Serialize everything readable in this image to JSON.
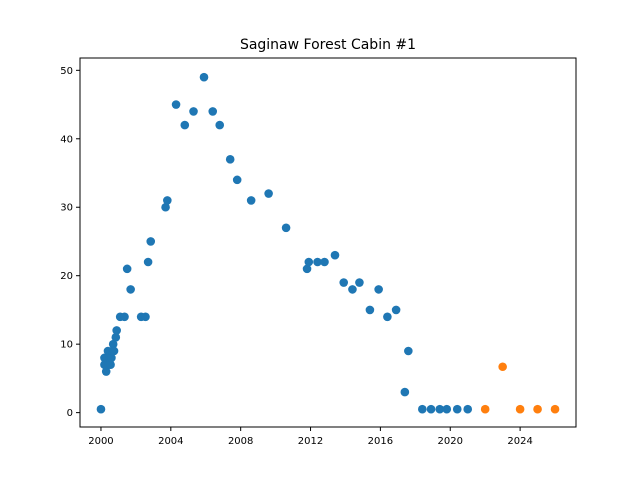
{
  "chart_data": {
    "type": "scatter",
    "title": "Saginaw Forest Cabin #1",
    "xlabel": "",
    "ylabel": "",
    "xlim": [
      1998.8,
      2027.2
    ],
    "ylim": [
      -2.1,
      51.8
    ],
    "xticks": [
      "2000",
      "2004",
      "2008",
      "2012",
      "2016",
      "2020",
      "2024"
    ],
    "yticks": [
      "0",
      "10",
      "20",
      "30",
      "40",
      "50"
    ],
    "grid": false,
    "legend": "none",
    "series": [
      {
        "color": "#1f77b4",
        "points": [
          [
            2000.0,
            0.5
          ],
          [
            2000.2,
            8
          ],
          [
            2000.2,
            7
          ],
          [
            2000.3,
            6
          ],
          [
            2000.35,
            8
          ],
          [
            2000.4,
            9
          ],
          [
            2000.45,
            7
          ],
          [
            2000.5,
            8
          ],
          [
            2000.55,
            7
          ],
          [
            2000.6,
            8
          ],
          [
            2000.65,
            9
          ],
          [
            2000.7,
            10
          ],
          [
            2000.75,
            9
          ],
          [
            2000.85,
            11
          ],
          [
            2000.9,
            12
          ],
          [
            2001.1,
            14
          ],
          [
            2001.35,
            14
          ],
          [
            2001.5,
            21
          ],
          [
            2001.7,
            18
          ],
          [
            2002.3,
            14
          ],
          [
            2002.55,
            14
          ],
          [
            2002.7,
            22
          ],
          [
            2002.85,
            25
          ],
          [
            2003.7,
            30
          ],
          [
            2003.8,
            31
          ],
          [
            2004.3,
            45
          ],
          [
            2004.8,
            42
          ],
          [
            2005.3,
            44
          ],
          [
            2005.9,
            49
          ],
          [
            2006.4,
            44
          ],
          [
            2006.8,
            42
          ],
          [
            2007.4,
            37
          ],
          [
            2007.8,
            34
          ],
          [
            2008.6,
            31
          ],
          [
            2009.6,
            32
          ],
          [
            2010.6,
            27
          ],
          [
            2011.8,
            21
          ],
          [
            2011.9,
            22
          ],
          [
            2012.4,
            22
          ],
          [
            2012.8,
            22
          ],
          [
            2013.4,
            23
          ],
          [
            2013.9,
            19
          ],
          [
            2014.4,
            18
          ],
          [
            2014.8,
            19
          ],
          [
            2015.4,
            15
          ],
          [
            2015.9,
            18
          ],
          [
            2016.4,
            14
          ],
          [
            2016.9,
            15
          ],
          [
            2017.4,
            3
          ],
          [
            2017.6,
            9
          ],
          [
            2018.4,
            0.5
          ],
          [
            2018.9,
            0.5
          ],
          [
            2019.4,
            0.5
          ],
          [
            2019.8,
            0.5
          ],
          [
            2020.4,
            0.5
          ],
          [
            2021.0,
            0.5
          ]
        ]
      },
      {
        "color": "#ff7f0e",
        "points": [
          [
            2022.0,
            0.5
          ],
          [
            2023.0,
            6.7
          ],
          [
            2024.0,
            0.5
          ],
          [
            2025.0,
            0.5
          ],
          [
            2026.0,
            0.5
          ]
        ]
      }
    ]
  }
}
